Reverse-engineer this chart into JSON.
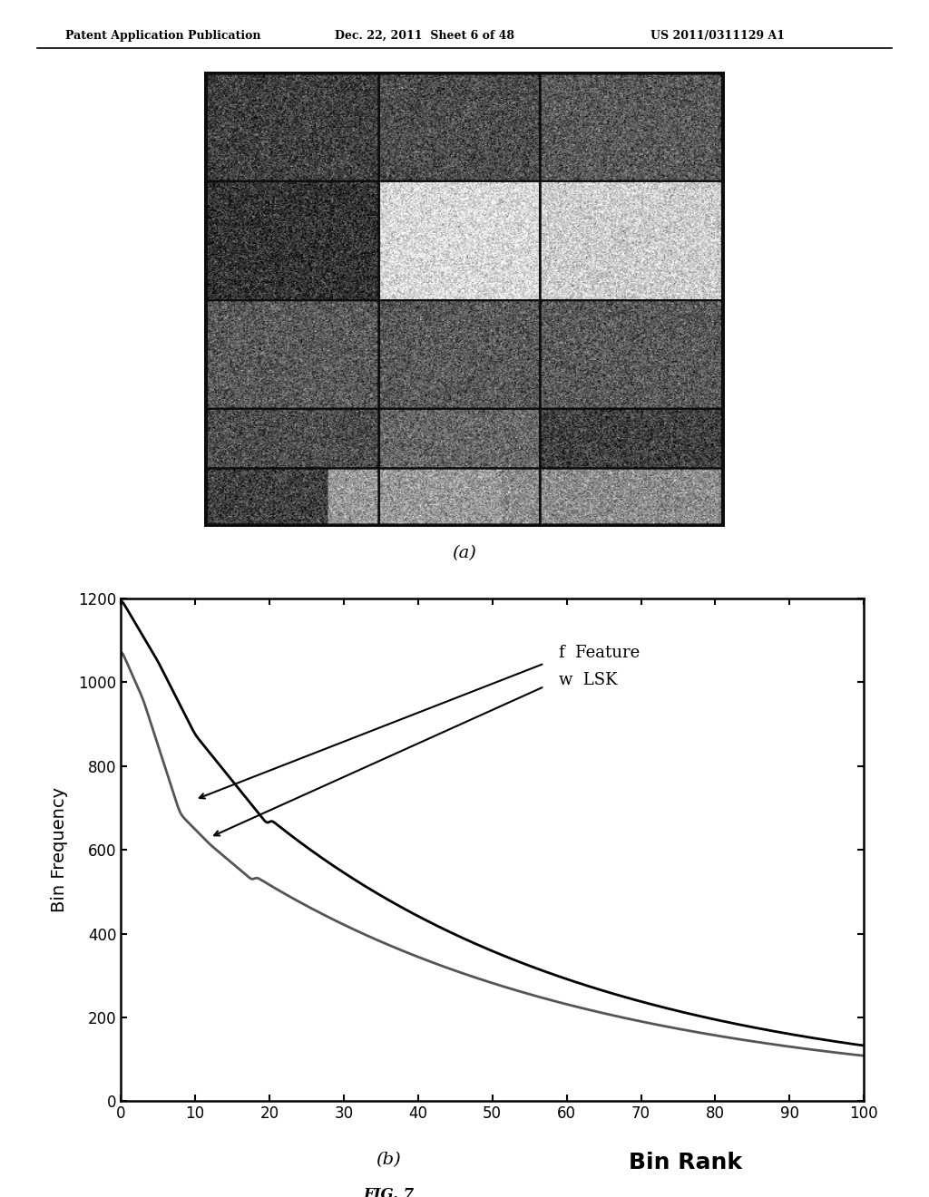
{
  "header_left": "Patent Application Publication",
  "header_center": "Dec. 22, 2011  Sheet 6 of 48",
  "header_right": "US 2011/0311129 A1",
  "caption_a": "(a)",
  "caption_b": "(b)",
  "fig_label": "FIG. 7",
  "xlabel_main": "Bin Rank",
  "ylabel_main": "Bin Frequency",
  "yticks": [
    0,
    200,
    400,
    600,
    800,
    1000,
    1200
  ],
  "xticks": [
    0,
    10,
    20,
    30,
    40,
    50,
    60,
    70,
    80,
    90,
    100
  ],
  "line_color_f": "#000000",
  "line_color_w": "#555555",
  "background_color": "#ffffff"
}
